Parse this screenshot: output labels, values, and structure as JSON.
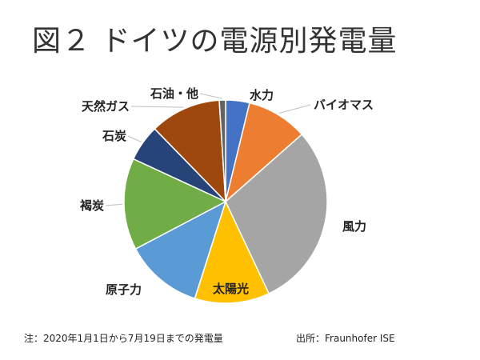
{
  "title": "図２ ドイツの電源別発電量",
  "note": "注：2020年1月1日から7月19日までの発電量",
  "source": "出所：Fraunhofer ISE",
  "chart_data": {
    "type": "pie",
    "unit": "%",
    "start_angle": "top, clockwise",
    "slices": [
      {
        "label": "水力",
        "value": 3.8,
        "color": "#4472c4"
      },
      {
        "label": "バイオマス",
        "value": 9.7,
        "color": "#ed7d31"
      },
      {
        "label": "風力",
        "value": 29.5,
        "color": "#a5a5a5"
      },
      {
        "label": "太陽光",
        "value": 11.9,
        "color": "#ffc000"
      },
      {
        "label": "原子力",
        "value": 12.4,
        "color": "#5b9bd5"
      },
      {
        "label": "褐炭",
        "value": 14.6,
        "color": "#70ad47"
      },
      {
        "label": "石炭",
        "value": 5.8,
        "color": "#264478"
      },
      {
        "label": "天然ガス",
        "value": 11.3,
        "color": "#9e480e"
      },
      {
        "label": "石油・他",
        "value": 1.0,
        "color": "#636363"
      }
    ]
  }
}
